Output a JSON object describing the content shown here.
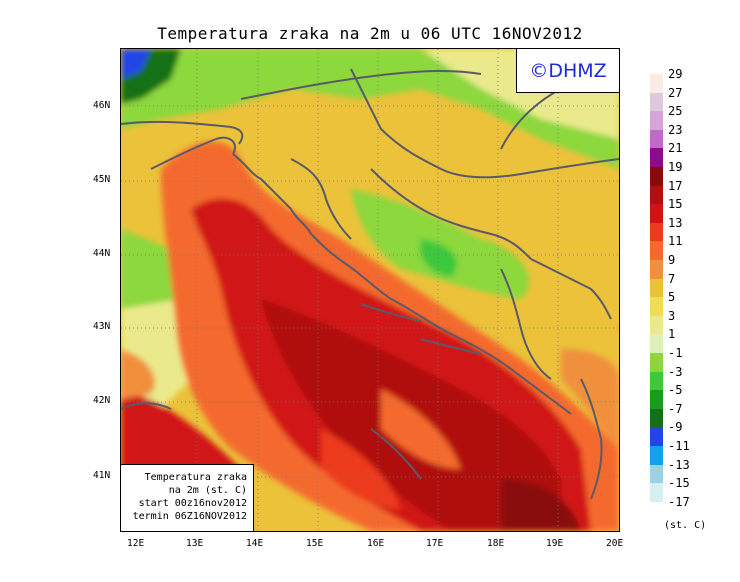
{
  "title": "Temperatura zraka na 2m u 06 UTC 16NOV2012",
  "logo": "©DHMZ",
  "info_box": {
    "line1": "Temperatura zraka",
    "line2": "na 2m (st. C)",
    "line3": "start 00z16nov2012",
    "line4": "termin 06Z16NOV2012"
  },
  "axes": {
    "lat_labels": [
      "46N",
      "45N",
      "44N",
      "43N",
      "42N",
      "41N"
    ],
    "lon_labels": [
      "12E",
      "13E",
      "14E",
      "15E",
      "16E",
      "17E",
      "18E",
      "19E",
      "20E"
    ],
    "lat_range": [
      40.3,
      46.7
    ],
    "lon_range": [
      11.7,
      20.0
    ]
  },
  "legend": {
    "labels": [
      "29",
      "27",
      "25",
      "23",
      "21",
      "19",
      "17",
      "15",
      "13",
      "11",
      "9",
      "7",
      "5",
      "3",
      "1",
      "-1",
      "-3",
      "-5",
      "-7",
      "-9",
      "-11",
      "-13",
      "-15",
      "-17"
    ],
    "colors": [
      "#f8ece4",
      "#e0c8dc",
      "#d6a4d8",
      "#c268c8",
      "#8c0c8c",
      "#8a0a0a",
      "#b01010",
      "#d01414",
      "#ec3a1e",
      "#f46a2e",
      "#f0903c",
      "#ecc23a",
      "#f0dc56",
      "#eaea8c",
      "#dcf0b8",
      "#8cd83c",
      "#3ec83c",
      "#1c9c1c",
      "#147014",
      "#2444e8",
      "#14a0ec",
      "#9ad4e4",
      "#d4f0f0",
      "#ffffff"
    ],
    "unit": "(st. C)"
  }
}
